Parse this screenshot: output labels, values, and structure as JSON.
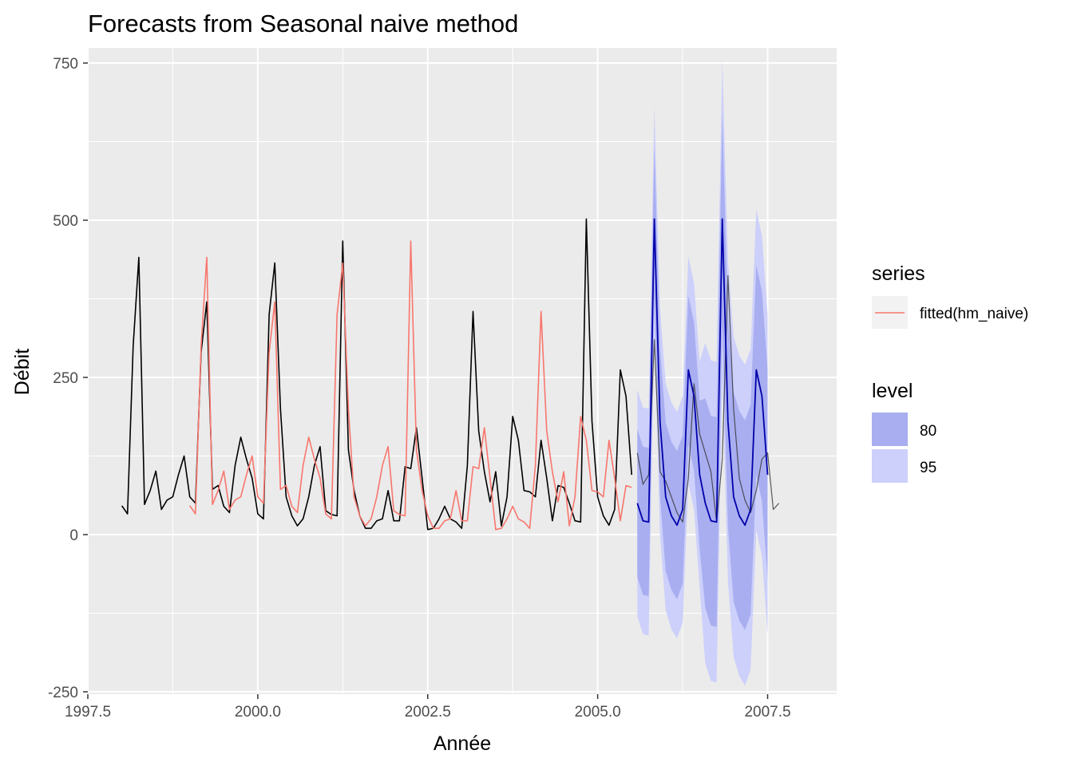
{
  "chart_data": {
    "type": "line",
    "title": "Forecasts from Seasonal naive method",
    "xlabel": "Année",
    "ylabel": "Débit",
    "xlim": [
      1997.5,
      2008.5
    ],
    "ylim": [
      -250,
      750
    ],
    "x_ticks": [
      1997.5,
      2000.0,
      2002.5,
      2005.0,
      2007.5
    ],
    "x_tick_labels": [
      "1997.5",
      "2000.0",
      "2002.5",
      "2005.0",
      "2007.5"
    ],
    "y_ticks": [
      -250,
      0,
      250,
      500,
      750
    ],
    "y_tick_labels": [
      "-250",
      "0",
      "250",
      "500",
      "750"
    ],
    "grid": true,
    "start": 1998.0,
    "frequency": 12,
    "colors": {
      "panel": "#ebebeb",
      "grid": "#ffffff",
      "data": "#000000",
      "fitted": "#f8766d",
      "forecast": "#0000aa",
      "band80": "#a8aef0",
      "band95": "#cdd0fa"
    },
    "data_values": [
      46,
      33,
      300,
      441,
      48,
      70,
      101,
      40,
      55,
      60,
      95,
      125,
      60,
      50,
      290,
      370,
      72,
      78,
      45,
      35,
      110,
      155,
      120,
      90,
      33,
      25,
      350,
      432,
      200,
      60,
      30,
      14,
      25,
      60,
      110,
      140,
      38,
      32,
      30,
      467,
      135,
      70,
      30,
      10,
      10,
      22,
      25,
      70,
      22,
      22,
      108,
      105,
      170,
      90,
      8,
      10,
      25,
      45,
      25,
      20,
      10,
      110,
      355,
      165,
      100,
      52,
      100,
      14,
      60,
      188,
      150,
      70,
      68,
      60,
      150,
      90,
      22,
      78,
      75,
      50,
      22,
      20,
      502,
      180,
      60,
      30,
      15,
      40,
      262,
      220,
      95
    ],
    "actual_tail": [
      130,
      80,
      95,
      310,
      100,
      85,
      60,
      35,
      20,
      90,
      240,
      160,
      130,
      100,
      20,
      120,
      412,
      200,
      90,
      55,
      35,
      70,
      120,
      130,
      40,
      50
    ],
    "forecast_values": [
      50,
      22,
      20,
      502,
      180,
      60,
      30,
      15,
      40,
      262,
      220,
      95,
      50,
      22,
      20,
      502,
      180,
      60,
      30,
      15,
      40,
      262,
      220,
      95
    ],
    "legend": {
      "series_title": "series",
      "series_entries": [
        "fitted(hm_naive)"
      ],
      "level_title": "level",
      "level_entries": [
        "80",
        "95"
      ],
      "placement": "right"
    }
  }
}
